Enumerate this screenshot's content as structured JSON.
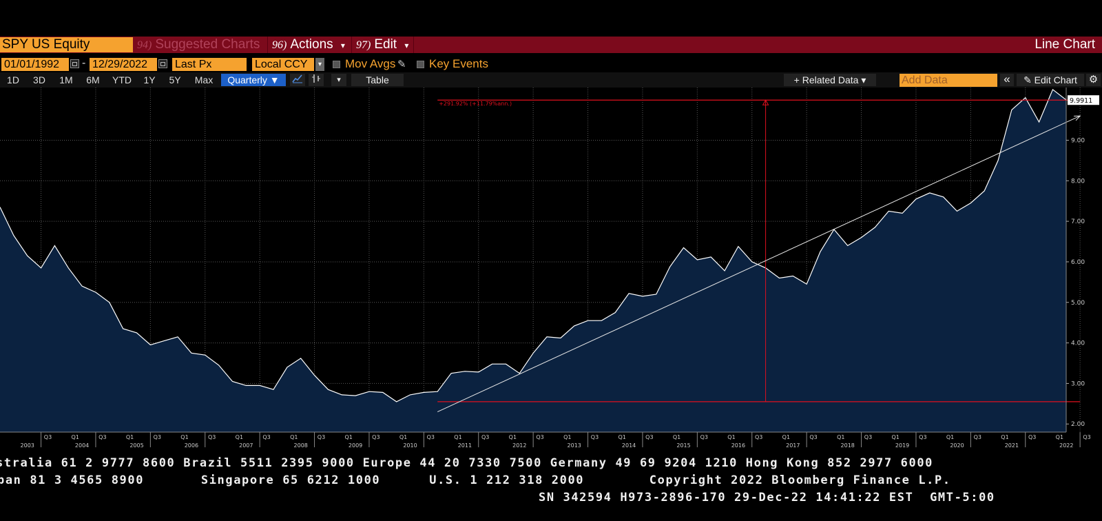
{
  "titlebar": {
    "ticker": "SPY US Equity",
    "suggested": {
      "num": "94)",
      "label": "Suggested Charts"
    },
    "actions": {
      "num": "96)",
      "label": "Actions"
    },
    "edit": {
      "num": "97)",
      "label": "Edit"
    },
    "chart_type": "Line Chart",
    "caret": "▾"
  },
  "controls": {
    "start_date": "01/01/1992",
    "dash": "-",
    "end_date": "12/29/2022",
    "field": "Last Px",
    "currency": "Local CCY",
    "mov_avgs": "Mov Avgs",
    "key_events": "Key Events"
  },
  "periods": [
    "1D",
    "3D",
    "1M",
    "6M",
    "YTD",
    "1Y",
    "5Y",
    "Max"
  ],
  "frequency": "Quarterly ▼",
  "toolbar": {
    "table": "Table",
    "related_data": "+ Related Data ▾",
    "add_data_placeholder": "Add Data",
    "edit_chart": "✎ Edit Chart",
    "collapse_glyph": "«",
    "settings_glyph": "⚙",
    "line_glyph": "📈",
    "bar_glyph": "⫮",
    "more_glyph": "▾"
  },
  "colors": {
    "accent_orange": "#f5a22f",
    "title_red": "#7c0a1c",
    "area_fill": "#0b2240",
    "line": "#ffffff",
    "annotation_red": "#e0101e"
  },
  "chart_data": {
    "type": "area",
    "ylim": [
      1.8,
      10.3
    ],
    "y_ticks": [
      2.0,
      3.0,
      4.0,
      5.0,
      6.0,
      7.0,
      8.0,
      9.0
    ],
    "y_tick_labels": [
      "2.00",
      "3.00",
      "4.00",
      "5.00",
      "6.00",
      "7.00",
      "8.00",
      "9.00"
    ],
    "last_value_label": "9.9911",
    "annotation_label": "+291.92% (+11.79%ann.)",
    "x_quarter_start": 2002.75,
    "x_quarter_end": 2022.5,
    "values": [
      7.35,
      6.65,
      6.15,
      5.85,
      6.4,
      5.85,
      5.4,
      5.25,
      5.0,
      4.35,
      4.25,
      3.95,
      4.05,
      4.15,
      3.75,
      3.7,
      3.45,
      3.05,
      2.95,
      2.95,
      2.85,
      3.4,
      3.62,
      3.2,
      2.85,
      2.72,
      2.7,
      2.8,
      2.78,
      2.55,
      2.72,
      2.78,
      2.8,
      3.25,
      3.3,
      3.28,
      3.48,
      3.48,
      3.25,
      3.75,
      4.15,
      4.12,
      4.42,
      4.55,
      4.55,
      4.75,
      5.22,
      5.15,
      5.2,
      5.88,
      6.35,
      6.05,
      6.12,
      5.78,
      6.38,
      6.0,
      5.85,
      5.6,
      5.65,
      5.45,
      6.25,
      6.8,
      6.4,
      6.6,
      6.85,
      7.25,
      7.2,
      7.55,
      7.7,
      7.6,
      7.25,
      7.45,
      7.75,
      8.5,
      9.75,
      10.05,
      9.45,
      10.25,
      9.99
    ],
    "trendline": {
      "x": [
        2010.75,
        2022.5
      ],
      "y": [
        2.3,
        9.6
      ]
    },
    "hline_low": 2.55,
    "hline_high": 9.99,
    "vline_x": 2016.75,
    "quarter_labels": [
      "Q1",
      "Q3"
    ],
    "year_labels": [
      "2003",
      "2004",
      "2005",
      "2006",
      "2007",
      "2008",
      "2009",
      "2010",
      "2011",
      "2012",
      "2013",
      "2014",
      "2015",
      "2016",
      "2017",
      "2018",
      "2019",
      "2020",
      "2021",
      "2022"
    ]
  },
  "footer": {
    "line1": "stralia 61 2 9777 8600 Brazil 5511 2395 9000 Europe 44 20 7330 7500 Germany 49 69 9204 1210 Hong Kong 852 2977 6000",
    "line2": "pan 81 3 4565 8900       Singapore 65 6212 1000      U.S. 1 212 318 2000        Copyright 2022 Bloomberg Finance L.P.",
    "line3": "SN 342594 H973-2896-170 29-Dec-22 14:41:22 EST  GMT-5:00"
  }
}
